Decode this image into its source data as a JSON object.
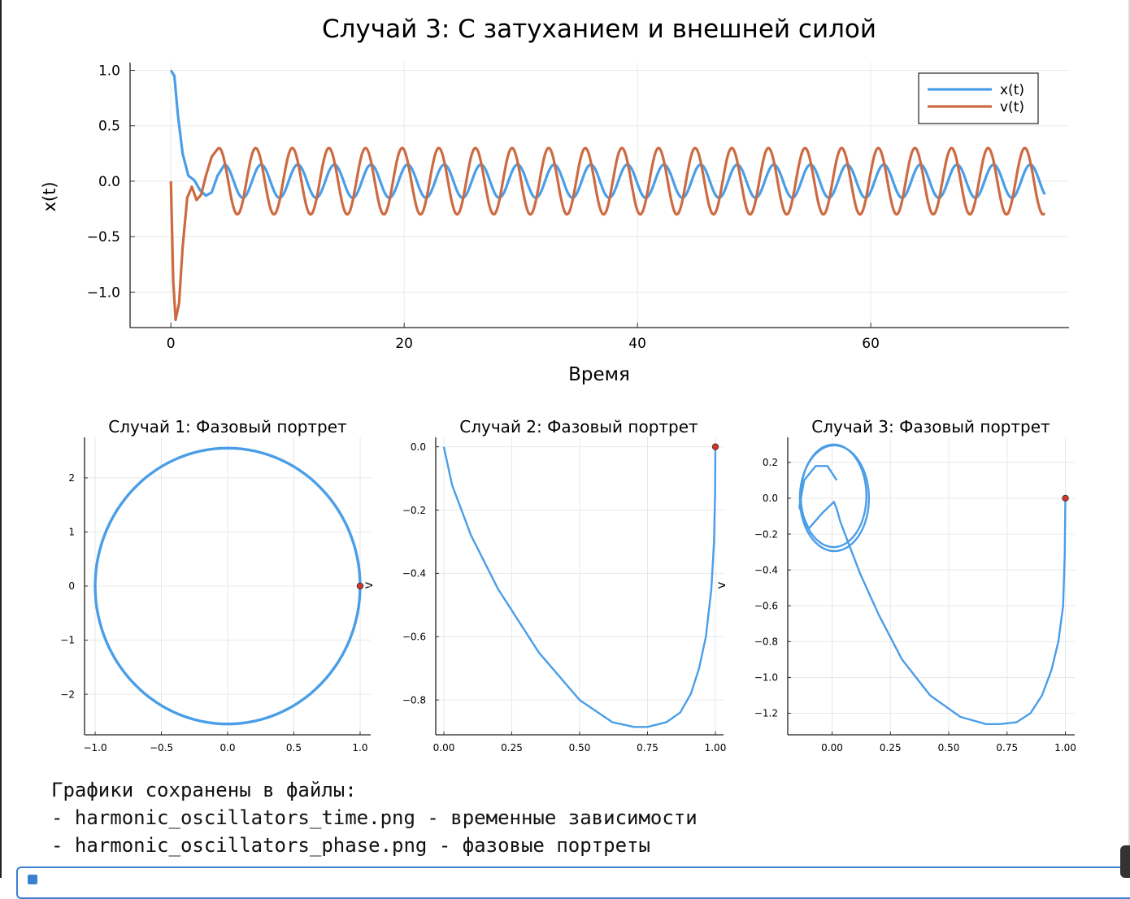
{
  "chart_data": [
    {
      "type": "line",
      "title": "Случай 3: С затуханием и внешней силой",
      "xlabel": "Время",
      "ylabel": "x(t)",
      "xlim": [
        -3.5,
        77
      ],
      "ylim": [
        -1.32,
        1.07
      ],
      "xticks": [
        "0",
        "20",
        "40",
        "60"
      ],
      "yticks": [
        "1.0",
        "0.5",
        "0.0",
        "−0.5",
        "−1.0"
      ],
      "grid": true,
      "legend": "top-right",
      "series": [
        {
          "name": "x(t)",
          "color": "#4a9ee8",
          "x": [
            0,
            0.3,
            0.6,
            1.0,
            1.5,
            2.0,
            2.5,
            3.0,
            3.5,
            4.0,
            4.6
          ],
          "y": [
            1.0,
            0.95,
            0.6,
            0.25,
            0.05,
            0.01,
            -0.08,
            -0.13,
            -0.1,
            0.05,
            0.15
          ],
          "steady": {
            "amplitude": 0.15,
            "period": 3.14,
            "t_end": 75
          }
        },
        {
          "name": "v(t)",
          "color": "#cd6a42",
          "x": [
            0,
            0.2,
            0.4,
            0.7,
            1.0,
            1.4,
            1.8,
            2.2,
            2.6,
            3.0,
            3.5,
            4.0
          ],
          "y": [
            0.0,
            -0.9,
            -1.25,
            -1.1,
            -0.6,
            -0.15,
            -0.05,
            -0.17,
            -0.12,
            0.05,
            0.22,
            0.29
          ],
          "steady": {
            "amplitude": 0.3,
            "period": 3.14,
            "t_end": 75
          }
        }
      ]
    },
    {
      "type": "line",
      "title": "Случай 1: Фазовый портрет",
      "xlabel": "",
      "ylabel": "v",
      "xlim": [
        -1.08,
        1.08
      ],
      "ylim": [
        -2.75,
        2.75
      ],
      "xticks": [
        "−1.0",
        "−0.5",
        "0.0",
        "0.5",
        "1.0"
      ],
      "yticks": [
        "2",
        "1",
        "0",
        "−1",
        "−2"
      ],
      "series": [
        {
          "color": "#4a9ee8",
          "shape": "ellipse",
          "rx": 1.0,
          "ry": 2.55
        }
      ],
      "start_point": {
        "x": 1.0,
        "y": 0.0,
        "color": "#d0352b"
      }
    },
    {
      "type": "line",
      "title": "Случай 2: Фазовый портрет",
      "xlabel": "",
      "ylabel": "",
      "xlim": [
        -0.03,
        1.03
      ],
      "ylim": [
        -0.91,
        0.03
      ],
      "xticks": [
        "0.00",
        "0.25",
        "0.50",
        "0.75",
        "1.00"
      ],
      "yticks": [
        "0.0",
        "−0.2",
        "−0.4",
        "−0.6",
        "−0.8"
      ],
      "series": [
        {
          "color": "#4a9ee8",
          "x": [
            1.0,
            0.999,
            0.995,
            0.985,
            0.965,
            0.94,
            0.91,
            0.87,
            0.82,
            0.75,
            0.7,
            0.62,
            0.5,
            0.35,
            0.2,
            0.1,
            0.03,
            0.0
          ],
          "y": [
            0.0,
            -0.15,
            -0.3,
            -0.45,
            -0.6,
            -0.7,
            -0.78,
            -0.84,
            -0.87,
            -0.885,
            -0.885,
            -0.87,
            -0.8,
            -0.65,
            -0.45,
            -0.28,
            -0.12,
            0.0
          ]
        }
      ],
      "start_point": {
        "x": 1.0,
        "y": 0.0,
        "color": "#d0352b"
      }
    },
    {
      "type": "line",
      "title": "Случай 3: Фазовый портрет",
      "xlabel": "",
      "ylabel": "v",
      "xlim": [
        -0.19,
        1.04
      ],
      "ylim": [
        -1.32,
        0.34
      ],
      "xticks": [
        "0.00",
        "0.25",
        "0.50",
        "0.75",
        "1.00"
      ],
      "yticks": [
        "0.2",
        "0.0",
        "−0.2",
        "−0.4",
        "−0.6",
        "−0.8",
        "−1.0",
        "−1.2"
      ],
      "series": [
        {
          "color": "#4a9ee8",
          "x": [
            1.0,
            0.997,
            0.99,
            0.97,
            0.94,
            0.9,
            0.85,
            0.79,
            0.72,
            0.66,
            0.55,
            0.42,
            0.3,
            0.2,
            0.12,
            0.07,
            0.035,
            0.02,
            0.008,
            -0.04,
            -0.1,
            -0.14,
            -0.12,
            -0.07,
            -0.02,
            0.02
          ],
          "y": [
            0.0,
            -0.32,
            -0.6,
            -0.8,
            -0.96,
            -1.1,
            -1.2,
            -1.25,
            -1.26,
            -1.26,
            -1.22,
            -1.1,
            -0.9,
            -0.65,
            -0.42,
            -0.25,
            -0.13,
            -0.06,
            -0.02,
            -0.08,
            -0.17,
            -0.05,
            0.1,
            0.18,
            0.18,
            0.1
          ],
          "limit_cycle": {
            "cx": 0.01,
            "cy": 0.0,
            "rx": 0.148,
            "ry": 0.295
          }
        }
      ],
      "start_point": {
        "x": 1.0,
        "y": 0.0,
        "color": "#d0352b"
      }
    }
  ],
  "output": {
    "line1": "Графики сохранены в файлы:",
    "line2": "- harmonic_oscillators_time.png - временные зависимости",
    "line3": "- harmonic_oscillators_phase.png - фазовые портреты"
  }
}
